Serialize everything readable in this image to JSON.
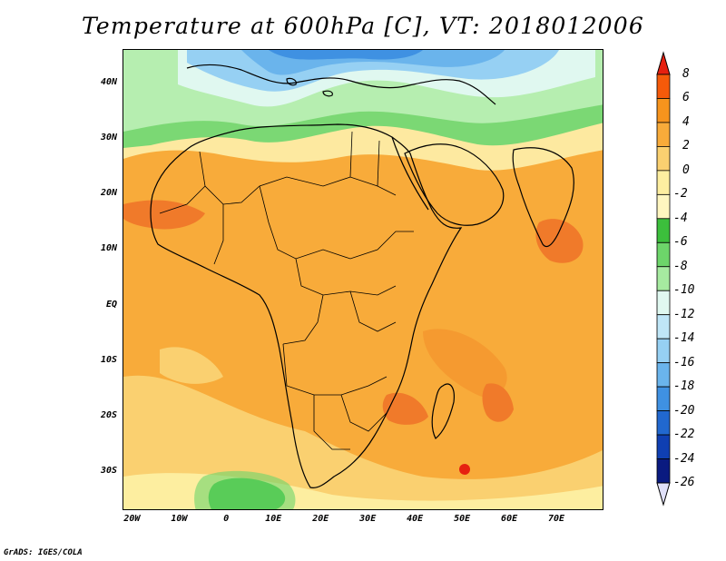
{
  "title": "Temperature at 600hPa [C], VT: 2018012006",
  "credit": "GrADS: IGES/COLA",
  "map": {
    "projection": "lat-lon",
    "lon_range": [
      -22,
      80
    ],
    "lat_range": [
      -37,
      46
    ],
    "lat_ticks": [
      {
        "lat": 40,
        "label": "40N"
      },
      {
        "lat": 30,
        "label": "30N"
      },
      {
        "lat": 20,
        "label": "20N"
      },
      {
        "lat": 10,
        "label": "10N"
      },
      {
        "lat": 0,
        "label": "EQ"
      },
      {
        "lat": -10,
        "label": "10S"
      },
      {
        "lat": -20,
        "label": "20S"
      },
      {
        "lat": -30,
        "label": "30S"
      }
    ],
    "lon_ticks": [
      {
        "lon": -20,
        "label": "20W"
      },
      {
        "lon": -10,
        "label": "10W"
      },
      {
        "lon": 0,
        "label": "0"
      },
      {
        "lon": 10,
        "label": "10E"
      },
      {
        "lon": 20,
        "label": "20E"
      },
      {
        "lon": 30,
        "label": "30E"
      },
      {
        "lon": 40,
        "label": "40E"
      },
      {
        "lon": 50,
        "label": "50E"
      },
      {
        "lon": 60,
        "label": "60E"
      },
      {
        "lon": 70,
        "label": "70E"
      }
    ]
  },
  "colorbar": {
    "labels": [
      "8",
      "6",
      "4",
      "2",
      "0",
      "-2",
      "-4",
      "-6",
      "-8",
      "-10",
      "-12",
      "-14",
      "-16",
      "-18",
      "-20",
      "-22",
      "-24",
      "-26"
    ],
    "colors": [
      "#e62010",
      "#f55a0a",
      "#f7941d",
      "#f8ab3a",
      "#fad070",
      "#fdeea0",
      "#fff6c0",
      "#3cbf3c",
      "#6dd56a",
      "#a6eaa0",
      "#e0f8f0",
      "#bfe6f7",
      "#96d0f3",
      "#6ab4ec",
      "#3f91e2",
      "#2168cf",
      "#0f3fb2",
      "#0a1a80",
      "#e0e0f8"
    ]
  },
  "legend_colors": {
    "warm_core": "#f07a2a",
    "orange": "#f7a13a",
    "light_orange": "#fac66a",
    "pale_yellow": "#fde9a0",
    "green": "#7bd874",
    "light_green": "#b6eeb0",
    "cold_blue": "#5aa6e6"
  }
}
